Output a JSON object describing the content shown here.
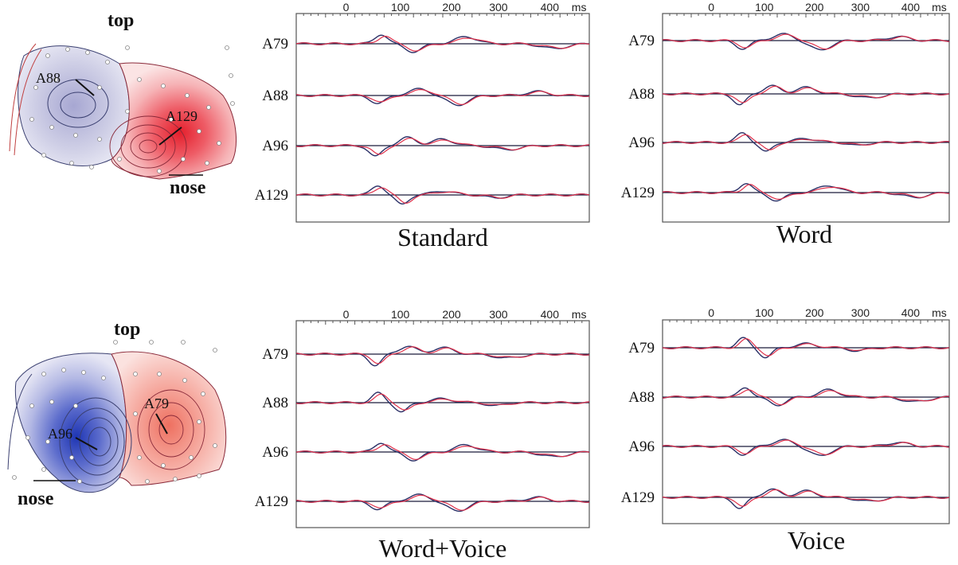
{
  "panels": [
    {
      "title": "Standard",
      "ticks": [
        "0",
        "100",
        "200",
        "300",
        "400",
        "ms"
      ],
      "channels": [
        "A79",
        "A88",
        "A96",
        "A129"
      ]
    },
    {
      "title": "Word",
      "ticks": [
        "0",
        "100",
        "200",
        "300",
        "400",
        "ms"
      ],
      "channels": [
        "A79",
        "A88",
        "A96",
        "A129"
      ]
    },
    {
      "title": "Word+Voice",
      "ticks": [
        "0",
        "100",
        "200",
        "300",
        "400",
        "ms"
      ],
      "channels": [
        "A79",
        "A88",
        "A96",
        "A129"
      ]
    },
    {
      "title": "Voice",
      "ticks": [
        "0",
        "100",
        "200",
        "300",
        "400",
        "ms"
      ],
      "channels": [
        "A79",
        "A88",
        "A96",
        "A129"
      ]
    }
  ],
  "topomaps": [
    {
      "top_label": "top",
      "nose_label": "nose",
      "electrode_labels": [
        "A88",
        "A129"
      ],
      "negative_color": "#b8b8dc",
      "positive_color": "#e8303a"
    },
    {
      "top_label": "top",
      "nose_label": "nose",
      "electrode_labels": [
        "A96",
        "A79"
      ],
      "negative_color": "#2a3aa8",
      "positive_color": "#f08070"
    }
  ],
  "colors": {
    "trace_a": "#2a2f66",
    "trace_b": "#e0304a",
    "baseline": "#1a1a3a"
  }
}
